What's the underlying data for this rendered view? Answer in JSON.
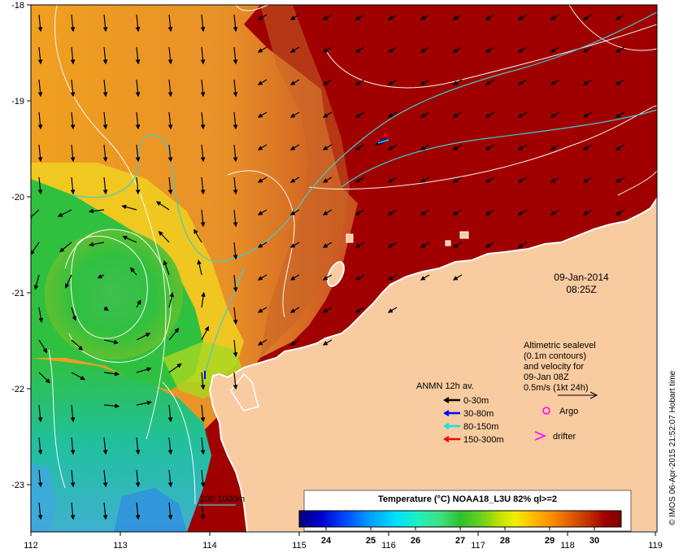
{
  "map": {
    "lon_ticks": [
      "112",
      "113",
      "114",
      "115",
      "116",
      "117",
      "118",
      "119"
    ],
    "lat_ticks": [
      "-18",
      "-19",
      "-20",
      "-21",
      "-22",
      "-23"
    ],
    "lon_range": [
      112,
      119
    ],
    "lat_range": [
      -23.5,
      -18
    ]
  },
  "timestamp": {
    "date": "09-Jan-2014",
    "time": "08:25Z"
  },
  "altimetry_note": {
    "line1": "Altimetric sealevel",
    "line2": "(0.1m contours)",
    "line3": "and velocity for",
    "line4": "09-Jan 08Z",
    "line5": "0.5m/s (1kt 24h)"
  },
  "anmn_legend": {
    "title": "ANMN 12h av.",
    "items": [
      {
        "label": "0-30m",
        "color": "#000000"
      },
      {
        "label": "30-80m",
        "color": "#0000ff"
      },
      {
        "label": "80-150m",
        "color": "#00e5e5"
      },
      {
        "label": "150-300m",
        "color": "#ff0000"
      }
    ]
  },
  "markers": {
    "argo_label": "Argo",
    "drifter_label": "drifter",
    "marker_color": "#ff00ff"
  },
  "bathy_legend": {
    "label": "200  1000m",
    "color": "#44cccc"
  },
  "colorbar": {
    "title": "Temperature (°C) NOAA18_L3U 82% ql>=2",
    "labels": [
      "24",
      "25",
      "26",
      "27",
      "28",
      "29",
      "30"
    ],
    "range": [
      23.4,
      30.6
    ],
    "colors": [
      "#000080",
      "#0000d0",
      "#0050ff",
      "#00a0ff",
      "#00e0ff",
      "#20f0c0",
      "#40e080",
      "#30c030",
      "#60d020",
      "#c0e000",
      "#f0f000",
      "#ffc000",
      "#ff9000",
      "#e06000",
      "#c03000",
      "#a00000",
      "#800000"
    ]
  },
  "credit": "© IMOS 06-Apr-2015 21:52:07 Hobart time",
  "colors": {
    "land": "#f8cba0",
    "warm_sea": "#a00000",
    "mid_sea": "#d88030",
    "cool_sea": "#30c050"
  }
}
